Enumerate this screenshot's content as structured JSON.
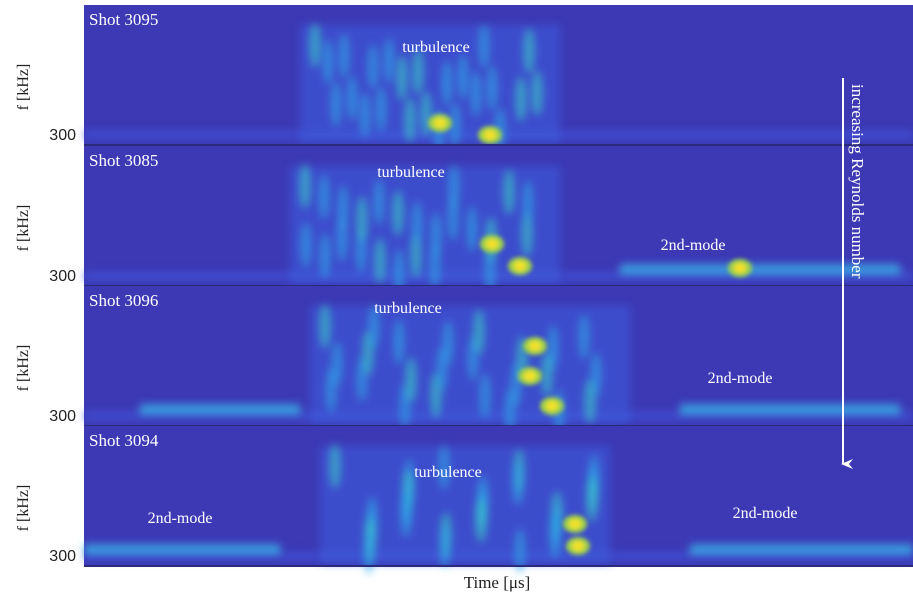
{
  "panels": [
    {
      "shot": "Shot 3095",
      "y_label": "f [kHz]",
      "y_tick": "300",
      "annotations": [
        "turbulence"
      ]
    },
    {
      "shot": "Shot 3085",
      "y_label": "f [kHz]",
      "y_tick": "300",
      "annotations": [
        "turbulence",
        "2nd-mode"
      ]
    },
    {
      "shot": "Shot 3096",
      "y_label": "f [kHz]",
      "y_tick": "300",
      "annotations": [
        "turbulence",
        "2nd-mode"
      ]
    },
    {
      "shot": "Shot 3094",
      "y_label": "f [kHz]",
      "y_tick": "300",
      "annotations": [
        "2nd-mode",
        "turbulence",
        "2nd-mode"
      ]
    }
  ],
  "x_label": "Time [μs]",
  "arrow_label": "increasing Reynolds number"
}
